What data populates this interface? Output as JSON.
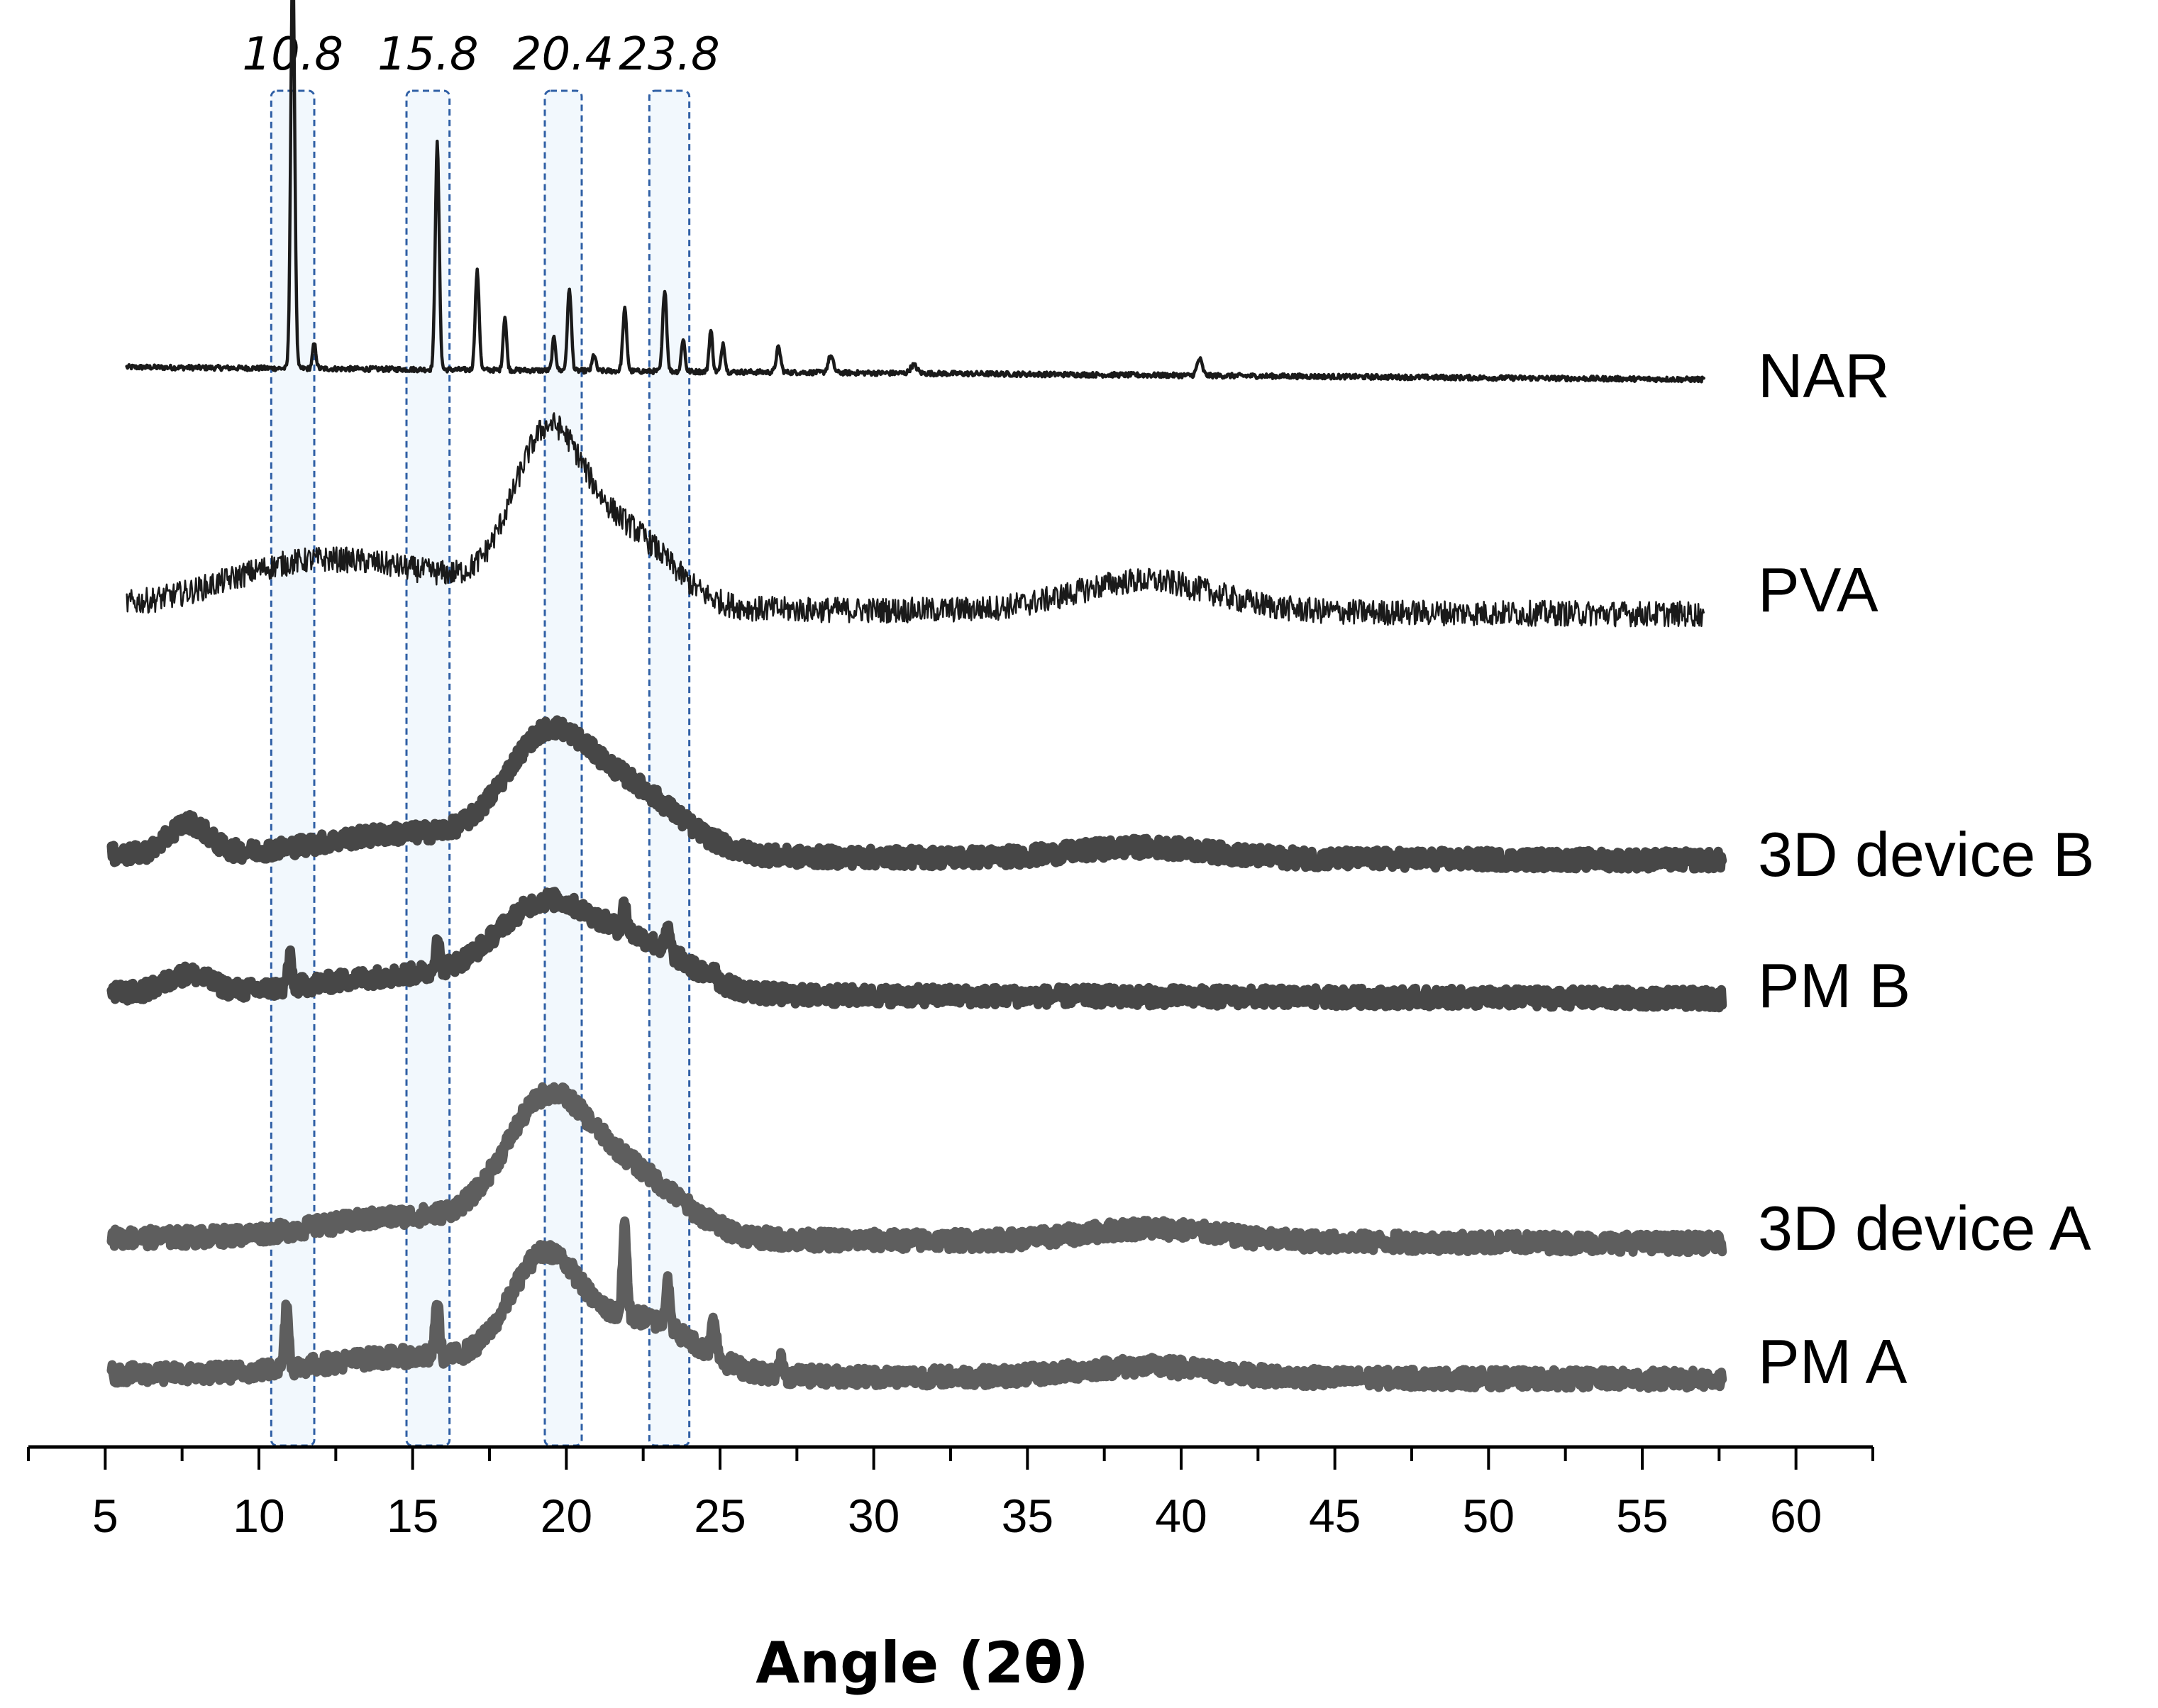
{
  "chart_data": {
    "type": "line",
    "title": "",
    "xlabel": "Angle (2θ)",
    "ylabel": "",
    "xlim": [
      2.5,
      62.5
    ],
    "xticks": [
      5,
      10,
      15,
      20,
      25,
      30,
      35,
      40,
      45,
      50,
      55,
      60
    ],
    "grid": false,
    "stacked_offsets": true,
    "highlighted_peaks": [
      {
        "label": "10.8",
        "from": 10.4,
        "to": 11.8
      },
      {
        "label": "15.8",
        "from": 14.8,
        "to": 16.2
      },
      {
        "label": "20.4",
        "from": 19.3,
        "to": 20.5
      },
      {
        "label": "23.8",
        "from": 22.7,
        "to": 24.0
      }
    ],
    "series": [
      {
        "name": "NAR",
        "x_range": [
          5.7,
          57.0
        ],
        "baseline": 0.03,
        "hump": [],
        "peaks": [
          {
            "x": 11.1,
            "h": 1.0,
            "w": 0.09
          },
          {
            "x": 11.8,
            "h": 0.06,
            "w": 0.08
          },
          {
            "x": 15.8,
            "h": 0.55,
            "w": 0.09
          },
          {
            "x": 17.1,
            "h": 0.24,
            "w": 0.09
          },
          {
            "x": 18.0,
            "h": 0.13,
            "w": 0.08
          },
          {
            "x": 19.6,
            "h": 0.08,
            "w": 0.08
          },
          {
            "x": 20.1,
            "h": 0.2,
            "w": 0.09
          },
          {
            "x": 20.9,
            "h": 0.04,
            "w": 0.08
          },
          {
            "x": 21.9,
            "h": 0.15,
            "w": 0.09
          },
          {
            "x": 23.2,
            "h": 0.2,
            "w": 0.09
          },
          {
            "x": 23.8,
            "h": 0.08,
            "w": 0.08
          },
          {
            "x": 24.7,
            "h": 0.1,
            "w": 0.08
          },
          {
            "x": 25.1,
            "h": 0.07,
            "w": 0.08
          },
          {
            "x": 26.9,
            "h": 0.06,
            "w": 0.1
          },
          {
            "x": 28.6,
            "h": 0.04,
            "w": 0.12
          },
          {
            "x": 31.3,
            "h": 0.02,
            "w": 0.15
          },
          {
            "x": 40.6,
            "h": 0.04,
            "w": 0.12
          }
        ],
        "noise": 0.006,
        "color": "#1a1a1a",
        "width": 4.5
      },
      {
        "name": "PVA",
        "x_range": [
          5.7,
          57.0
        ],
        "baseline": 0.0,
        "hump": [
          {
            "x": 19.4,
            "h": 0.62,
            "w": 1.6
          },
          {
            "x": 22.0,
            "h": 0.28,
            "w": 2.0
          },
          {
            "x": 15.0,
            "h": 0.12,
            "w": 4.5
          },
          {
            "x": 11.0,
            "h": 0.12,
            "w": 3.5
          },
          {
            "x": 38.8,
            "h": 0.12,
            "w": 3.2
          }
        ],
        "peaks": [],
        "noise": 0.05,
        "color": "#1a1a1a",
        "width": 2.5
      },
      {
        "name": "3D device B",
        "x_range": [
          5.2,
          57.6
        ],
        "baseline": 0.0,
        "hump": [
          {
            "x": 19.3,
            "h": 0.55,
            "w": 1.9
          },
          {
            "x": 22.0,
            "h": 0.35,
            "w": 2.4
          },
          {
            "x": 15.0,
            "h": 0.12,
            "w": 4.0
          },
          {
            "x": 7.7,
            "h": 0.17,
            "w": 0.9
          },
          {
            "x": 38.8,
            "h": 0.06,
            "w": 3.0
          }
        ],
        "peaks": [],
        "noise": 0.05,
        "color": "#474747",
        "width": 13
      },
      {
        "name": "PM B",
        "x_range": [
          5.2,
          57.6
        ],
        "baseline": 0.0,
        "hump": [
          {
            "x": 19.3,
            "h": 0.45,
            "w": 2.2
          },
          {
            "x": 22.5,
            "h": 0.25,
            "w": 2.2
          },
          {
            "x": 15.0,
            "h": 0.1,
            "w": 4.0
          },
          {
            "x": 7.7,
            "h": 0.1,
            "w": 1.0
          }
        ],
        "peaks": [
          {
            "x": 11.0,
            "h": 0.16,
            "w": 0.1
          },
          {
            "x": 15.8,
            "h": 0.18,
            "w": 0.1
          },
          {
            "x": 21.9,
            "h": 0.15,
            "w": 0.1
          },
          {
            "x": 23.3,
            "h": 0.12,
            "w": 0.1
          },
          {
            "x": 24.8,
            "h": 0.08,
            "w": 0.1
          }
        ],
        "noise": 0.05,
        "color": "#474747",
        "width": 13
      },
      {
        "name": "3D device A",
        "x_range": [
          5.2,
          57.6
        ],
        "baseline": 0.0,
        "hump": [
          {
            "x": 19.3,
            "h": 0.65,
            "w": 1.9
          },
          {
            "x": 22.0,
            "h": 0.35,
            "w": 2.4
          },
          {
            "x": 15.0,
            "h": 0.12,
            "w": 4.0
          },
          {
            "x": 39.0,
            "h": 0.07,
            "w": 3.0
          }
        ],
        "peaks": [],
        "noise": 0.05,
        "color": "#5e5e5e",
        "width": 13
      },
      {
        "name": "PM A",
        "x_range": [
          5.2,
          57.6
        ],
        "baseline": 0.0,
        "hump": [
          {
            "x": 19.3,
            "h": 0.6,
            "w": 1.6
          },
          {
            "x": 22.5,
            "h": 0.3,
            "w": 2.3
          },
          {
            "x": 15.0,
            "h": 0.1,
            "w": 4.0
          },
          {
            "x": 38.8,
            "h": 0.06,
            "w": 3.0
          }
        ],
        "peaks": [
          {
            "x": 10.9,
            "h": 0.35,
            "w": 0.1
          },
          {
            "x": 15.8,
            "h": 0.3,
            "w": 0.1
          },
          {
            "x": 21.9,
            "h": 0.5,
            "w": 0.1
          },
          {
            "x": 23.3,
            "h": 0.28,
            "w": 0.1
          },
          {
            "x": 24.8,
            "h": 0.2,
            "w": 0.12
          },
          {
            "x": 27.0,
            "h": 0.08,
            "w": 0.1
          }
        ],
        "noise": 0.05,
        "color": "#5e5e5e",
        "width": 13
      }
    ]
  }
}
